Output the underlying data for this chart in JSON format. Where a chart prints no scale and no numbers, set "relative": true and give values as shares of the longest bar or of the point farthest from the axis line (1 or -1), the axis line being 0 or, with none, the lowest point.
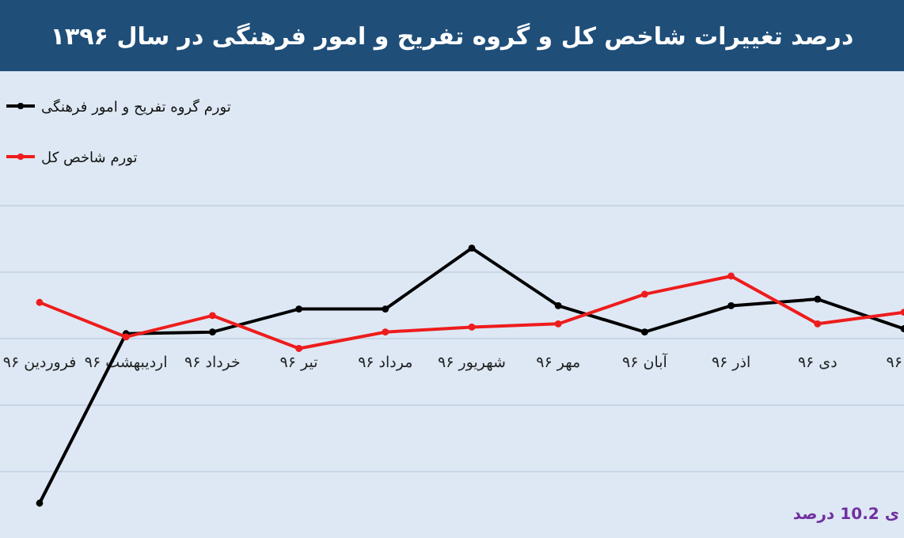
{
  "chart_data": {
    "type": "line",
    "title": "درصد تغییرات شاخص کل و گروه تفریح و امور فرهنگی در سال ۱۳۹۶",
    "categories": [
      "فروردین ۹۶",
      "اردیبهشت ۹۶",
      "خرداد ۹۶",
      "تیر ۹۶",
      "مرداد ۹۶",
      "شهریور ۹۶",
      "مهر ۹۶",
      "آبان ۹۶",
      "اذر ۹۶",
      "دی ۹۶",
      "۹۶"
    ],
    "series": [
      {
        "name": "تورم گروه تفریح و امور فرهنگی",
        "color": "#000000",
        "values": [
          -1,
          0.03,
          0.04,
          0.18,
          0.18,
          0.55,
          0.2,
          0.04,
          0.2,
          0.24,
          0.06
        ]
      },
      {
        "name": "تورم شاخص کل",
        "color": "#ee1c1c",
        "values": [
          0.22,
          0.01,
          0.14,
          -0.06,
          0.04,
          0.07,
          0.09,
          0.27,
          0.38,
          0.09,
          0.16
        ]
      }
    ],
    "relative": true,
    "grid": "y",
    "legend": "top left",
    "marker": "circle",
    "line_style": "solid",
    "annotations": [
      "ی 10.2 درصد"
    ]
  }
}
